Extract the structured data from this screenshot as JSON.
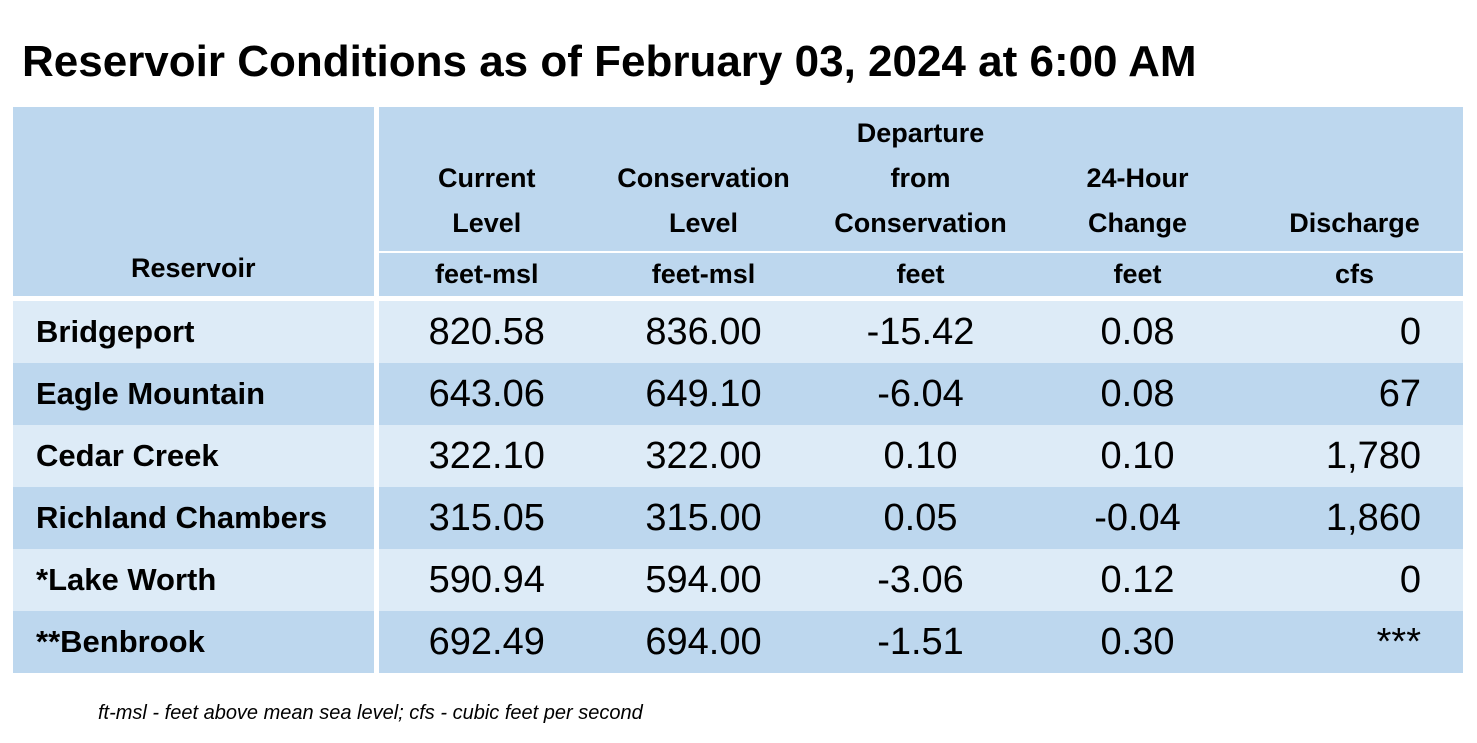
{
  "title": "Reservoir Conditions as of February 03, 2024 at 6:00 AM",
  "table": {
    "headers": [
      {
        "label": "Reservoir",
        "unit": ""
      },
      {
        "label_lines": [
          "Current",
          "Level"
        ],
        "unit": "feet-msl"
      },
      {
        "label_lines": [
          "Conservation",
          "Level"
        ],
        "unit": "feet-msl"
      },
      {
        "label_lines": [
          "Departure",
          "from",
          "Conservation"
        ],
        "unit": "feet"
      },
      {
        "label_lines": [
          "24-Hour",
          "Change"
        ],
        "unit": "feet"
      },
      {
        "label_lines": [
          "Discharge"
        ],
        "unit": "cfs"
      }
    ],
    "rows": [
      {
        "name": "Bridgeport",
        "current": "820.58",
        "conservation": "836.00",
        "departure": "-15.42",
        "change": "0.08",
        "discharge": "0"
      },
      {
        "name": "Eagle Mountain",
        "current": "643.06",
        "conservation": "649.10",
        "departure": "-6.04",
        "change": "0.08",
        "discharge": "67"
      },
      {
        "name": "Cedar Creek",
        "current": "322.10",
        "conservation": "322.00",
        "departure": "0.10",
        "change": "0.10",
        "discharge": "1,780"
      },
      {
        "name": "Richland Chambers",
        "current": "315.05",
        "conservation": "315.00",
        "departure": "0.05",
        "change": "-0.04",
        "discharge": "1,860"
      },
      {
        "name": "*Lake Worth",
        "current": "590.94",
        "conservation": "594.00",
        "departure": "-3.06",
        "change": "0.12",
        "discharge": "0"
      },
      {
        "name": "**Benbrook",
        "current": "692.49",
        "conservation": "694.00",
        "departure": "-1.51",
        "change": "0.30",
        "discharge": "***"
      }
    ]
  },
  "footnote": "ft-msl - feet above mean sea level; cfs - cubic feet per second",
  "colors": {
    "header_bg": "#bdd7ee",
    "row_light": "#ddebf7",
    "row_dark": "#bdd7ee"
  }
}
